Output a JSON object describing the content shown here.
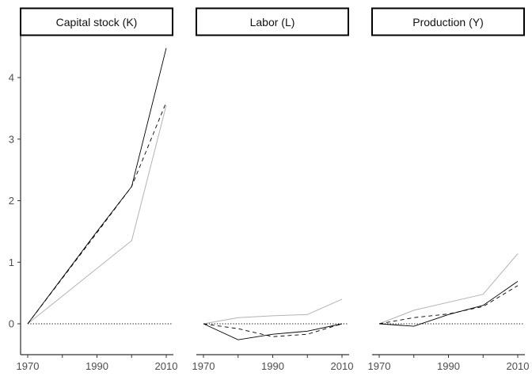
{
  "chart_data": [
    {
      "type": "line",
      "title": "Capital stock (K)",
      "xlabel": "",
      "ylabel": "",
      "x": [
        1970,
        1980,
        1990,
        2000,
        2010
      ],
      "xticks": [
        1970,
        1990,
        2010
      ],
      "ylim": [
        -0.5,
        4.6
      ],
      "yticks": [
        0,
        1,
        2,
        3,
        4
      ],
      "reference_line": 0,
      "grid": false,
      "series": [
        {
          "values": [
            0,
            0.75,
            1.5,
            2.23,
            4.48
          ],
          "color": "#000000",
          "dash": "solid"
        },
        {
          "values": [
            0,
            0.74,
            1.48,
            2.23,
            3.6
          ],
          "color": "#000000",
          "dash": "dashed"
        },
        {
          "values": [
            0,
            0.45,
            0.9,
            1.35,
            3.55
          ],
          "color": "#b3b3b3",
          "dash": "solid"
        }
      ]
    },
    {
      "type": "line",
      "title": "Labor (L)",
      "xlabel": "",
      "ylabel": "",
      "x": [
        1970,
        1980,
        1990,
        2000,
        2010
      ],
      "xticks": [
        1970,
        1990,
        2010
      ],
      "ylim": [
        -0.5,
        4.6
      ],
      "yticks": [
        0,
        1,
        2,
        3,
        4
      ],
      "reference_line": 0,
      "grid": false,
      "series": [
        {
          "values": [
            0,
            -0.26,
            -0.17,
            -0.12,
            0
          ],
          "color": "#000000",
          "dash": "solid"
        },
        {
          "values": [
            0,
            -0.08,
            -0.21,
            -0.17,
            0
          ],
          "color": "#000000",
          "dash": "dashed"
        },
        {
          "values": [
            0,
            0.1,
            0.13,
            0.15,
            0.4
          ],
          "color": "#b3b3b3",
          "dash": "solid"
        }
      ]
    },
    {
      "type": "line",
      "title": "Production (Y)",
      "xlabel": "",
      "ylabel": "",
      "x": [
        1970,
        1980,
        1990,
        2000,
        2010
      ],
      "xticks": [
        1970,
        1990,
        2010
      ],
      "ylim": [
        -0.5,
        4.6
      ],
      "yticks": [
        0,
        1,
        2,
        3,
        4
      ],
      "reference_line": 0,
      "grid": false,
      "series": [
        {
          "values": [
            0,
            -0.04,
            0.15,
            0.3,
            0.69
          ],
          "color": "#000000",
          "dash": "solid"
        },
        {
          "values": [
            0,
            0.1,
            0.16,
            0.28,
            0.62
          ],
          "color": "#000000",
          "dash": "dashed"
        },
        {
          "values": [
            0,
            0.22,
            0.35,
            0.48,
            1.14
          ],
          "color": "#b3b3b3",
          "dash": "solid"
        }
      ]
    }
  ]
}
